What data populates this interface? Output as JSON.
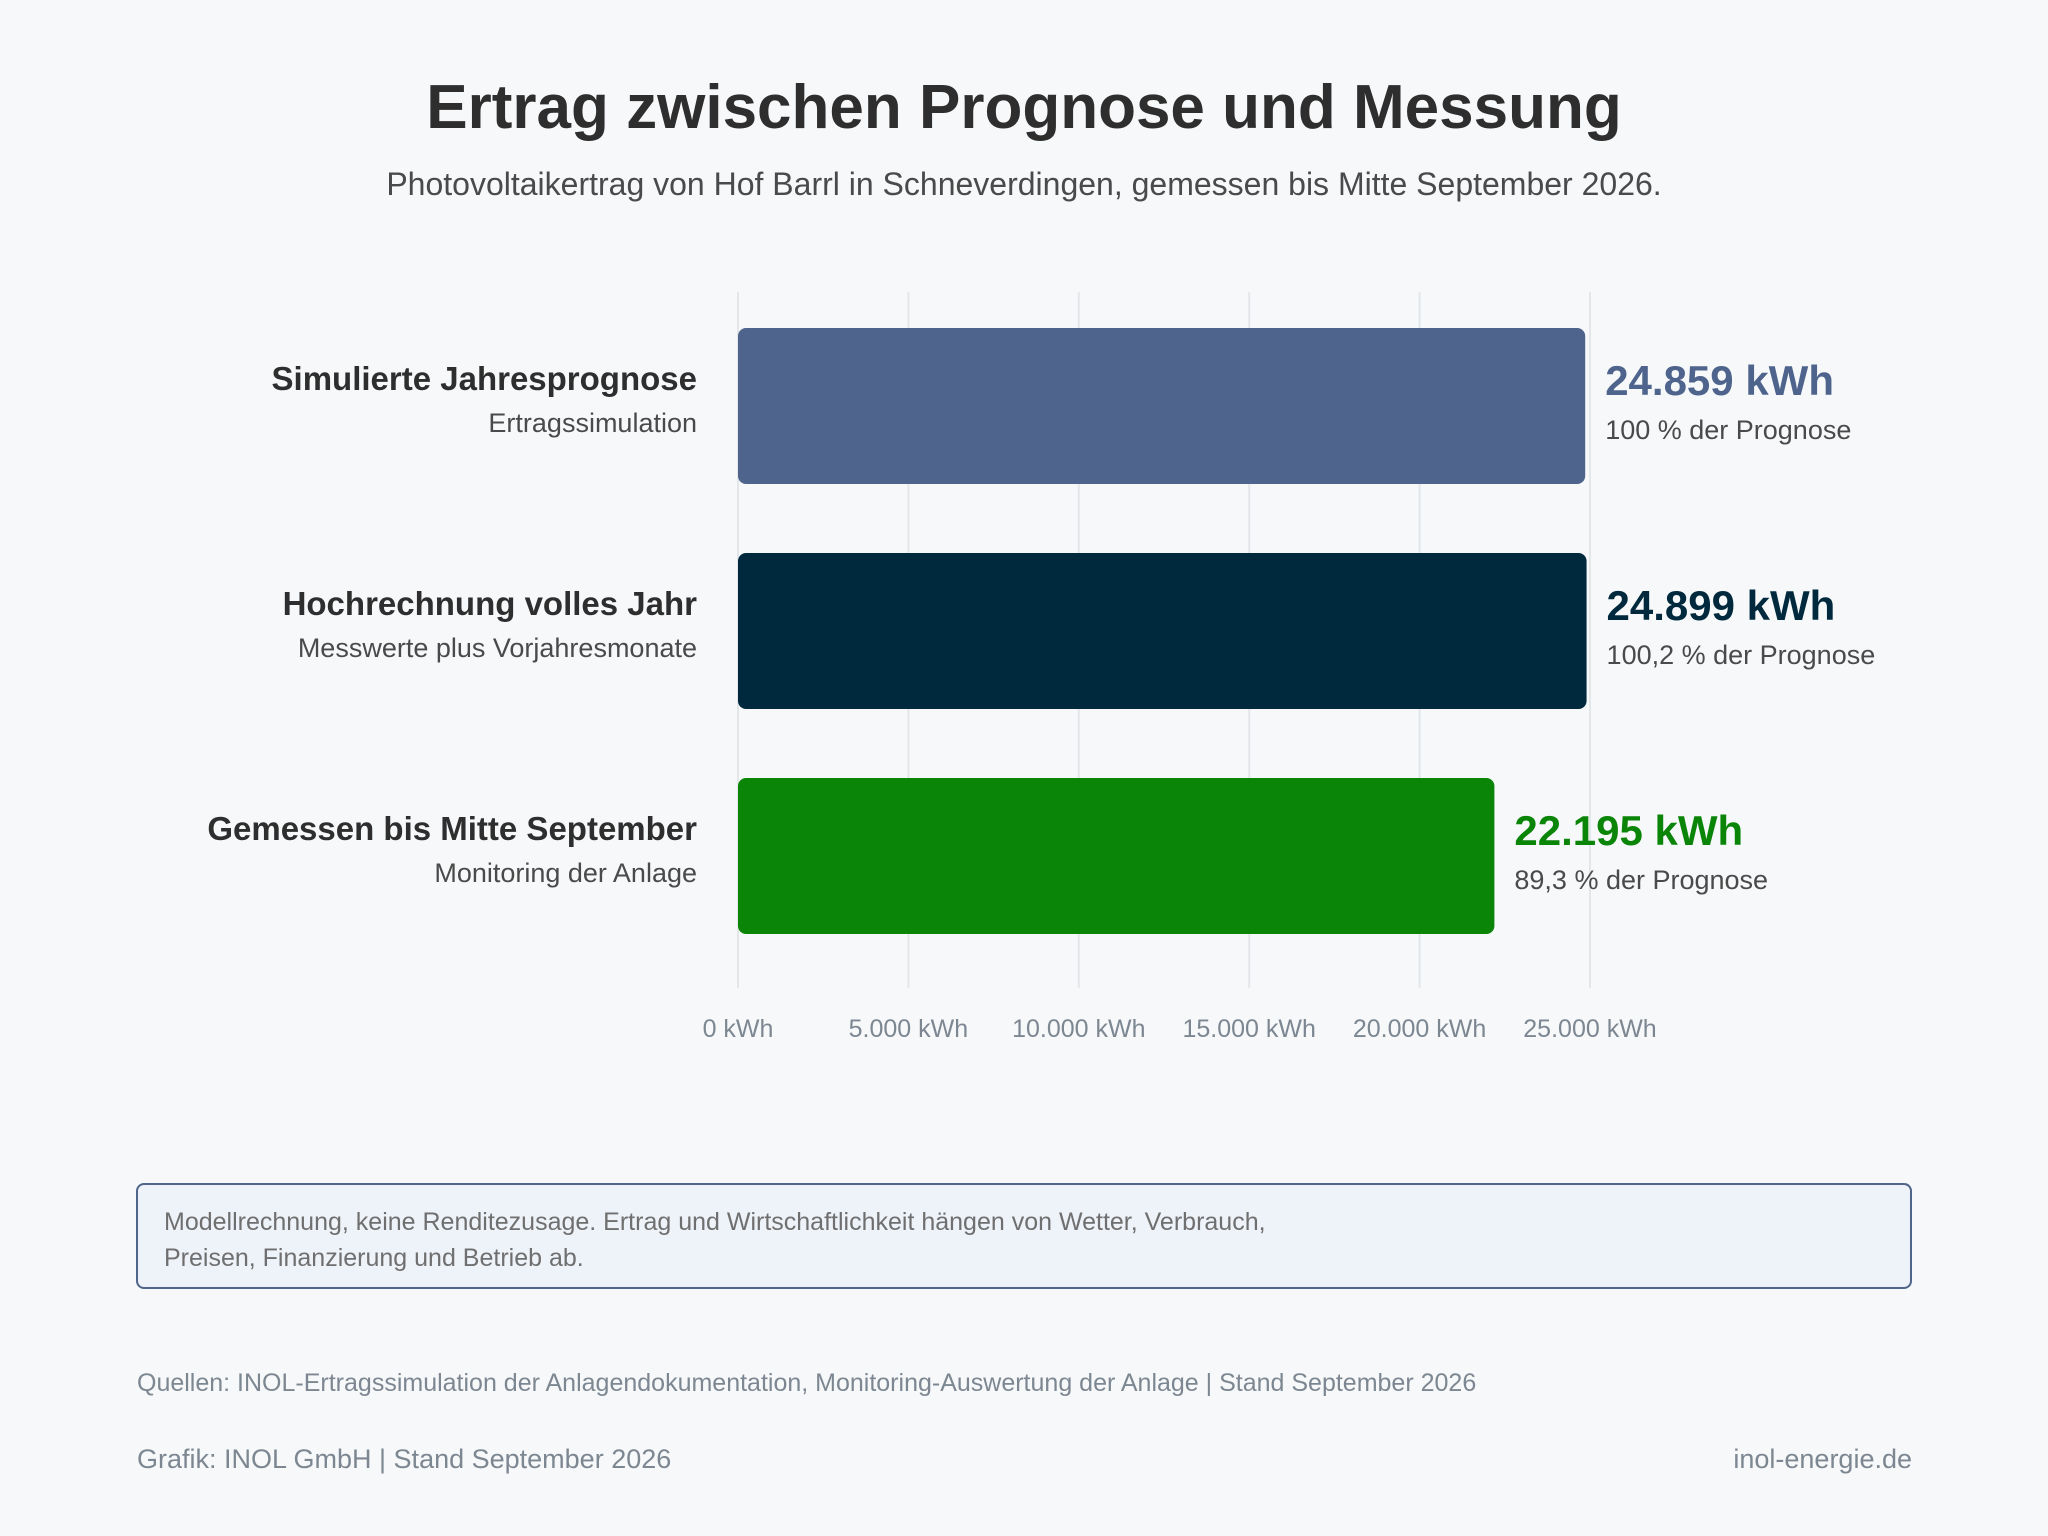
{
  "title": "Ertrag zwischen Prognose und Messung",
  "subtitle": "Photovoltaikertrag von Hof Barrl in Schneverdingen, gemessen bis Mitte September 2026.",
  "chart_data": {
    "type": "bar",
    "orientation": "horizontal",
    "title": "Ertrag zwischen Prognose und Messung",
    "subtitle": "Photovoltaikertrag von Hof Barrl in Schneverdingen, gemessen bis Mitte September 2026.",
    "unit": "kWh",
    "xlim": [
      0,
      25000
    ],
    "x_ticks": [
      0,
      5000,
      10000,
      15000,
      20000,
      25000
    ],
    "x_tick_labels": [
      "0 kWh",
      "5.000 kWh",
      "10.000 kWh",
      "15.000 kWh",
      "20.000 kWh",
      "25.000 kWh"
    ],
    "grid": "vertical",
    "bars": [
      {
        "label": "Simulierte Jahresprognose",
        "sublabel": "Ertragssimulation",
        "value": 24859,
        "value_label": "24.859 kWh",
        "percent_label": "100 % der Prognose",
        "color": "#4e648c"
      },
      {
        "label": "Hochrechnung volles Jahr",
        "sublabel": "Messwerte plus Vorjahresmonate",
        "value": 24899,
        "value_label": "24.899 kWh",
        "percent_label": "100,2 % der Prognose",
        "color": "#00293d"
      },
      {
        "label": "Gemessen bis Mitte September",
        "sublabel": "Monitoring der Anlage",
        "value": 22195,
        "value_label": "22.195 kWh",
        "percent_label": "89,3 % der Prognose",
        "color": "#0a8508"
      }
    ]
  },
  "disclaimer": "Modellrechnung, keine Renditezusage. Ertrag und Wirtschaftlichkeit hängen von Wetter, Verbrauch, Preisen, Finanzierung und Betrieb ab.",
  "sources": "Quellen: INOL-Ertragssimulation der Anlagendokumentation, Monitoring-Auswertung der Anlage | Stand September 2026",
  "footer": {
    "credit": "Grafik: INOL GmbH | Stand September 2026",
    "website": "inol-energie.de"
  }
}
